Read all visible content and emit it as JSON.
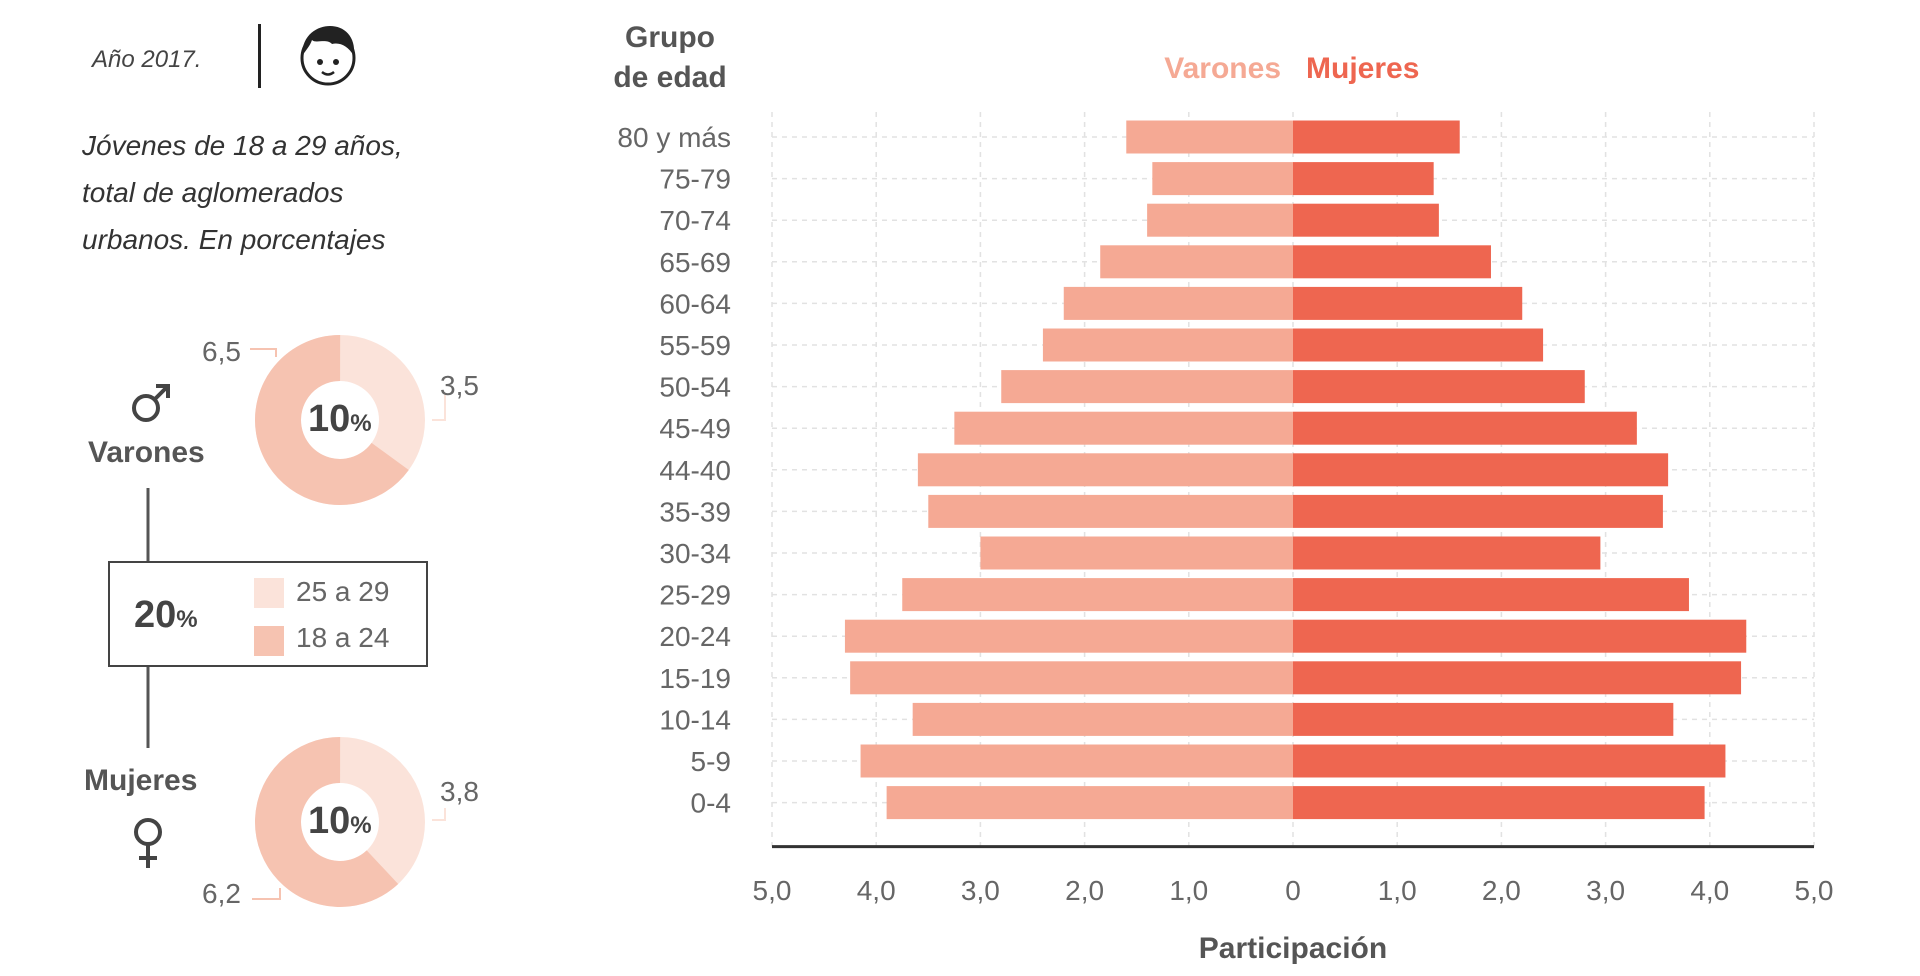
{
  "sidebar": {
    "year": "Año 2017.",
    "face_icon": "boy-face-icon",
    "subtitle_lines": [
      "Jóvenes de 18 a 29 años,",
      "total de aglomerados",
      "urbanos. En porcentajes"
    ],
    "male": {
      "label": "Varones",
      "icon": "male-symbol-icon",
      "total_pct": "10",
      "pct_suffix": "%",
      "segments": [
        {
          "range": "25 a 29",
          "value": 3.5,
          "label": "3,5"
        },
        {
          "range": "18 a 24",
          "value": 6.5,
          "label": "6,5"
        }
      ]
    },
    "female": {
      "label": "Mujeres",
      "icon": "female-symbol-icon",
      "total_pct": "10",
      "pct_suffix": "%",
      "segments": [
        {
          "range": "25 a 29",
          "value": 3.8,
          "label": "3,8"
        },
        {
          "range": "18 a 24",
          "value": 6.2,
          "label": "6,2"
        }
      ]
    },
    "total_box": {
      "total": "20",
      "suffix": "%",
      "legend": [
        {
          "label": "25 a 29",
          "color": "#fbe3da"
        },
        {
          "label": "18 a 24",
          "color": "#f6c3b1"
        }
      ]
    }
  },
  "chart_data": {
    "type": "bar",
    "orientation": "horizontal-population-pyramid",
    "y_title": "Grupo\nde edad",
    "xlabel": "Participación",
    "legend": [
      {
        "name": "Varones",
        "color": "#f5a994"
      },
      {
        "name": "Mujeres",
        "color": "#ee6650"
      }
    ],
    "categories": [
      "80 y más",
      "75-79",
      "70-74",
      "65-69",
      "60-64",
      "55-59",
      "50-54",
      "45-49",
      "44-40",
      "35-39",
      "30-34",
      "25-29",
      "20-24",
      "15-19",
      "10-14",
      "5-9",
      "0-4"
    ],
    "series": [
      {
        "name": "Varones",
        "color": "#f5a994",
        "values": [
          1.6,
          1.35,
          1.4,
          1.85,
          2.2,
          2.4,
          2.8,
          3.25,
          3.6,
          3.5,
          3.0,
          3.75,
          4.3,
          4.25,
          3.65,
          4.15,
          3.9
        ]
      },
      {
        "name": "Mujeres",
        "color": "#ee6650",
        "values": [
          1.6,
          1.35,
          1.4,
          1.9,
          2.2,
          2.4,
          2.8,
          3.3,
          3.6,
          3.55,
          2.95,
          3.8,
          4.35,
          4.3,
          3.65,
          4.15,
          3.95
        ]
      }
    ],
    "xlim": [
      -5,
      5
    ],
    "x_ticks": [
      "5,0",
      "4,0",
      "3,0",
      "2,0",
      "1,0",
      "0",
      "1,0",
      "2,0",
      "3,0",
      "4,0",
      "5,0"
    ],
    "grid": true
  }
}
